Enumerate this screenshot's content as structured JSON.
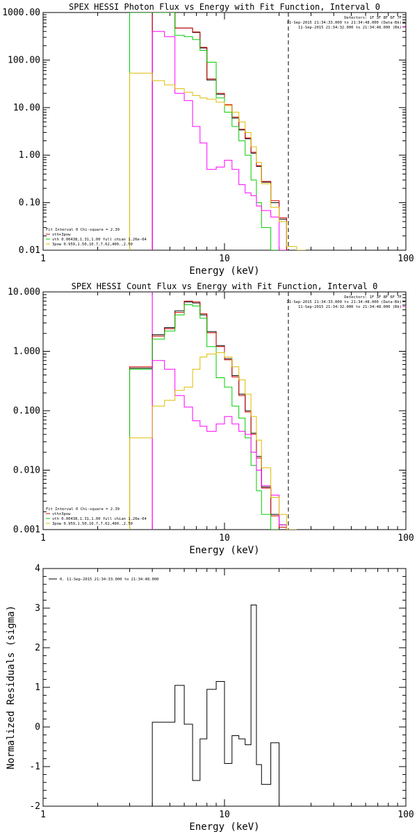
{
  "chart_data": [
    {
      "type": "line",
      "title": "SPEX HESSI Photon Flux vs Energy with Fit Function, Interval 0",
      "xlabel": "Energy (keV)",
      "ylabel": "",
      "xscale": "log",
      "yscale": "log",
      "xlim": [
        1,
        100
      ],
      "ylim": [
        0.01,
        1000
      ],
      "xticks": [
        "1",
        "10",
        "100"
      ],
      "yticks": [
        "0.01",
        "0.10",
        "1.00",
        "10.00",
        "100.00",
        "1000.00"
      ],
      "header_lines": [
        "Detectors: 1F 3F 8F 6F 7F",
        "11-Sep-2015 21:34:33.000 to 21:34:48.000 (Data-Bk)",
        "11-Sep-2015 21:34:32.000 to 21:34:48.000 (Bk)"
      ],
      "legend": [
        "Fit Interval 0   Chi-square = 2.39",
        "vth+3pow",
        "vth 0.00438,1.31,1.00  full chian 1.26e-04",
        "3pow 0.959,1.50,10.7,7.62,400.,2.50"
      ],
      "edges": [
        3.0,
        4.0,
        4.67,
        5.33,
        6.0,
        6.67,
        7.33,
        8.0,
        9.0,
        10.0,
        11.0,
        12.0,
        13.0,
        14.0,
        15.0,
        16.0,
        18.0,
        20.0,
        22.0,
        25.0,
        28.0
      ],
      "series": [
        {
          "name": "",
          "color": "#000000",
          "values": [
            null,
            1000,
            1000,
            470,
            470,
            380,
            180,
            38,
            19,
            11,
            6,
            3.4,
            2.2,
            1.1,
            0.58,
            0.27,
            0.1,
            0.045,
            null,
            null
          ]
        },
        {
          "name": "",
          "color": "#d00000",
          "values": [
            null,
            1000,
            1000,
            470,
            470,
            390,
            185,
            40,
            20,
            11.5,
            6.3,
            3.5,
            2.3,
            1.15,
            0.6,
            0.28,
            0.11,
            0.048,
            null,
            null
          ]
        },
        {
          "name": "",
          "color": "#00cc00",
          "values": [
            1000,
            1000,
            1000,
            330,
            310,
            270,
            160,
            90,
            16,
            8,
            4,
            2.0,
            1.0,
            0.3,
            0.1,
            0.03,
            0.008,
            null,
            null,
            null
          ]
        },
        {
          "name": "",
          "color": "#ff00ff",
          "values": [
            null,
            400,
            310,
            20,
            14,
            4,
            1.8,
            0.5,
            0.56,
            0.78,
            0.5,
            0.24,
            0.16,
            0.14,
            0.085,
            0.068,
            0.05,
            0.005,
            null,
            null
          ]
        },
        {
          "name": "",
          "color": "#ddbb00",
          "values": [
            53,
            37,
            30,
            25,
            21,
            18,
            16,
            15,
            13,
            11,
            8,
            5,
            3,
            1.5,
            0.7,
            0.25,
            0.08,
            0.04,
            0.012,
            0.004
          ]
        }
      ],
      "vlines": [
        {
          "x": 4.0,
          "color": "#ff00ff",
          "dash": "solid"
        },
        {
          "x": 22.5,
          "color": "#000000",
          "dash": "dashed"
        }
      ]
    },
    {
      "type": "line",
      "title": "SPEX HESSI Count Flux vs Energy with Fit Function, Interval 0",
      "xlabel": "Energy (keV)",
      "ylabel": "",
      "xscale": "log",
      "yscale": "log",
      "xlim": [
        1,
        100
      ],
      "ylim": [
        0.001,
        10
      ],
      "xticks": [
        "1",
        "10",
        "100"
      ],
      "yticks": [
        "0.001",
        "0.010",
        "0.100",
        "1.000",
        "10.000"
      ],
      "header_lines": [
        "Detectors: 1F 3F 8F 6F 7F",
        "11-Sep-2015 21:34:33.000 to 21:34:48.000 (Data-Bk)",
        "11-Sep-2015 21:34:32.000 to 21:34:48.000 (Bk)"
      ],
      "legend": [
        "Fit Interval 0   Chi-square = 2.39",
        "vth+3pow",
        "vth 0.00438,1.31,1.00  full chian 1.26e-04",
        "3pow 0.959,1.50,10.7,7.62,400.,2.50"
      ],
      "edges": [
        3.0,
        4.0,
        4.67,
        5.33,
        6.0,
        6.67,
        7.33,
        8.0,
        9.0,
        10.0,
        11.0,
        12.0,
        13.0,
        14.0,
        15.0,
        16.0,
        18.0,
        20.0,
        22.0,
        25.0,
        28.0
      ],
      "series": [
        {
          "name": "",
          "color": "#000000",
          "values": [
            0.52,
            1.9,
            2.5,
            4.8,
            6.8,
            6.5,
            4.1,
            2.15,
            1.25,
            0.75,
            0.39,
            0.19,
            0.1,
            0.042,
            0.017,
            0.0052,
            0.0018,
            0.0012,
            null,
            null
          ]
        },
        {
          "name": "",
          "color": "#d00000",
          "values": [
            0.55,
            1.8,
            2.4,
            4.5,
            7.0,
            6.8,
            4.3,
            2.05,
            1.2,
            0.72,
            0.37,
            0.18,
            0.095,
            0.04,
            0.016,
            0.005,
            0.0017,
            0.0011,
            null,
            null
          ]
        },
        {
          "name": "",
          "color": "#00cc00",
          "values": [
            0.5,
            1.6,
            2.2,
            4.1,
            6.1,
            5.8,
            3.6,
            1.2,
            0.36,
            0.25,
            0.12,
            0.075,
            0.035,
            0.012,
            0.0045,
            0.0018,
            0.001,
            null,
            null,
            null
          ]
        },
        {
          "name": "",
          "color": "#ff00ff",
          "values": [
            null,
            0.7,
            0.5,
            0.18,
            0.115,
            0.068,
            0.055,
            0.045,
            0.06,
            0.08,
            0.06,
            0.045,
            0.04,
            0.02,
            0.01,
            0.0055,
            0.0038,
            0.0012,
            null,
            null
          ]
        },
        {
          "name": "",
          "color": "#ddbb00",
          "values": [
            0.035,
            0.12,
            0.15,
            0.22,
            0.25,
            0.5,
            0.8,
            0.9,
            0.95,
            0.8,
            0.55,
            0.33,
            0.19,
            0.08,
            0.032,
            0.011,
            0.0035,
            0.0018,
            0.0009,
            null
          ]
        }
      ],
      "vlines": [
        {
          "x": 4.0,
          "color": "#000000",
          "dash": "dotted"
        },
        {
          "x": 4.0,
          "color": "#ff00ff",
          "dash": "solid"
        },
        {
          "x": 22.5,
          "color": "#000000",
          "dash": "dashed"
        }
      ]
    },
    {
      "type": "line",
      "title": "",
      "xlabel": "Energy (keV)",
      "ylabel": "Normalized Residuals (sigma)",
      "xscale": "log",
      "yscale": "linear",
      "xlim": [
        1,
        100
      ],
      "ylim": [
        -2,
        4
      ],
      "xticks": [
        "1",
        "10",
        "100"
      ],
      "yticks": [
        "-2",
        "-1",
        "0",
        "1",
        "2",
        "3",
        "4"
      ],
      "legend": [
        "0. 11-Sep-2015 21:34:33.000 to 21:34:48.000"
      ],
      "edges": [
        4.0,
        4.67,
        5.33,
        6.0,
        6.67,
        7.33,
        8.0,
        9.0,
        10.0,
        11.0,
        12.0,
        13.0,
        14.0,
        15.0,
        16.0,
        18.0,
        20.0,
        22.0
      ],
      "series": [
        {
          "name": "",
          "color": "#000000",
          "values": [
            0.12,
            0.12,
            1.05,
            0.07,
            -1.35,
            -0.3,
            0.95,
            1.15,
            -0.92,
            -0.22,
            -0.3,
            -0.45,
            3.08,
            -0.95,
            -1.45,
            -0.4,
            -2.0
          ]
        }
      ]
    }
  ]
}
